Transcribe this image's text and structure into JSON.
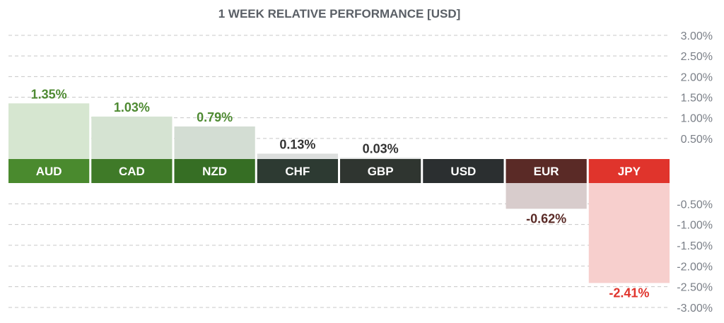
{
  "chart_data": {
    "type": "bar",
    "title": "1 WEEK RELATIVE PERFORMANCE  [USD]",
    "categories": [
      "AUD",
      "CAD",
      "NZD",
      "CHF",
      "GBP",
      "USD",
      "EUR",
      "JPY"
    ],
    "values": [
      1.35,
      1.03,
      0.79,
      0.13,
      0.03,
      0,
      -0.62,
      -2.41
    ],
    "value_labels": [
      "1.35%",
      "1.03%",
      "0.79%",
      "0.13%",
      "0.03%",
      "",
      "-0.62%",
      "-2.41%"
    ],
    "positive_ticks": [
      0.5,
      1.0,
      1.5,
      2.0,
      2.5,
      3.0
    ],
    "negative_ticks": [
      -0.5,
      -1.0,
      -1.5,
      -2.0,
      -2.5,
      -3.0
    ],
    "tick_labels_positive": [
      "0.50%",
      "1.00%",
      "1.50%",
      "2.00%",
      "2.50%",
      "3.00%"
    ],
    "tick_labels_negative": [
      "-0.50%",
      "-1.00%",
      "-1.50%",
      "-2.00%",
      "-2.50%",
      "-3.00%"
    ],
    "ylim": [
      -3.0,
      3.0
    ],
    "grid": true,
    "colors": {
      "label_bg": [
        "#4a8a2e",
        "#3f7a28",
        "#366e24",
        "#2d3a32",
        "#2f3530",
        "#2b2f30",
        "#5a2a26",
        "#e0342c"
      ],
      "bar_fill": [
        "#d6e6d0",
        "#d5e3d2",
        "#d3ddd3",
        "#dcdedd",
        "#dcdedd",
        "#dcdedd",
        "#d8cccc",
        "#f7cfcd"
      ],
      "value_text": [
        "#4e8a32",
        "#4e8a32",
        "#4e8a32",
        "#333333",
        "#333333",
        "#333333",
        "#5a2a26",
        "#e0342c"
      ],
      "grid": "#c8c8c8",
      "title": "#5a5f66",
      "tick": "#7a7f87"
    }
  }
}
